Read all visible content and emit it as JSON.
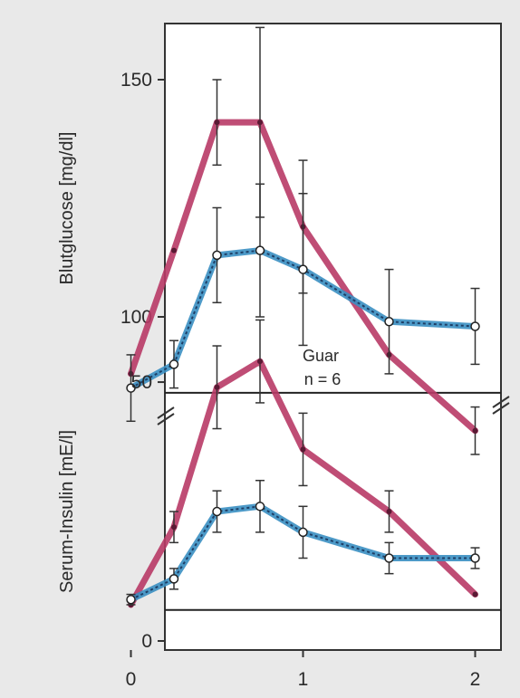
{
  "chart_data": [
    {
      "type": "line",
      "ylabel": "Blutglucose [mg/dl]",
      "ylim": [
        75,
        175
      ],
      "yticks": [
        100,
        150
      ],
      "xlim": [
        -0.35,
        2.15
      ],
      "baseline": 84,
      "series": [
        {
          "color": "#b83a66",
          "x": [
            0,
            0.25,
            0.5,
            0.75,
            1,
            1.5,
            2
          ],
          "y": [
            88,
            114,
            141,
            141,
            119,
            92,
            76
          ],
          "err": [
            0,
            0,
            9,
            20,
            14,
            0,
            5
          ]
        },
        {
          "color": "#3a8fc2",
          "x": [
            0,
            0.25,
            0.5,
            0.75,
            1,
            1.5,
            2
          ],
          "y": [
            85,
            90,
            113,
            114,
            110,
            99,
            98
          ],
          "err": [
            7,
            5,
            10,
            14,
            16,
            11,
            8
          ]
        }
      ],
      "annotations": [
        "Guar",
        "n = 6"
      ]
    },
    {
      "type": "line",
      "ylabel": "Serum-Insulin [mE/l]",
      "ylim": [
        0,
        64
      ],
      "yticks": [
        0,
        50
      ],
      "xticks": [
        0,
        1,
        2
      ],
      "xlim": [
        -0.35,
        2.15
      ],
      "baseline": 6,
      "series": [
        {
          "color": "#b83a66",
          "x": [
            0,
            0.25,
            0.5,
            0.75,
            1,
            1.5,
            2
          ],
          "y": [
            7,
            22,
            49,
            54,
            37,
            25,
            9
          ],
          "err": [
            0,
            3,
            8,
            8,
            7,
            4,
            0
          ]
        },
        {
          "color": "#3a8fc2",
          "x": [
            0,
            0.25,
            0.5,
            0.75,
            1,
            1.5,
            2
          ],
          "y": [
            8,
            12,
            25,
            26,
            21,
            16,
            16
          ],
          "err": [
            1,
            2,
            4,
            5,
            5,
            3,
            2
          ]
        }
      ]
    }
  ]
}
